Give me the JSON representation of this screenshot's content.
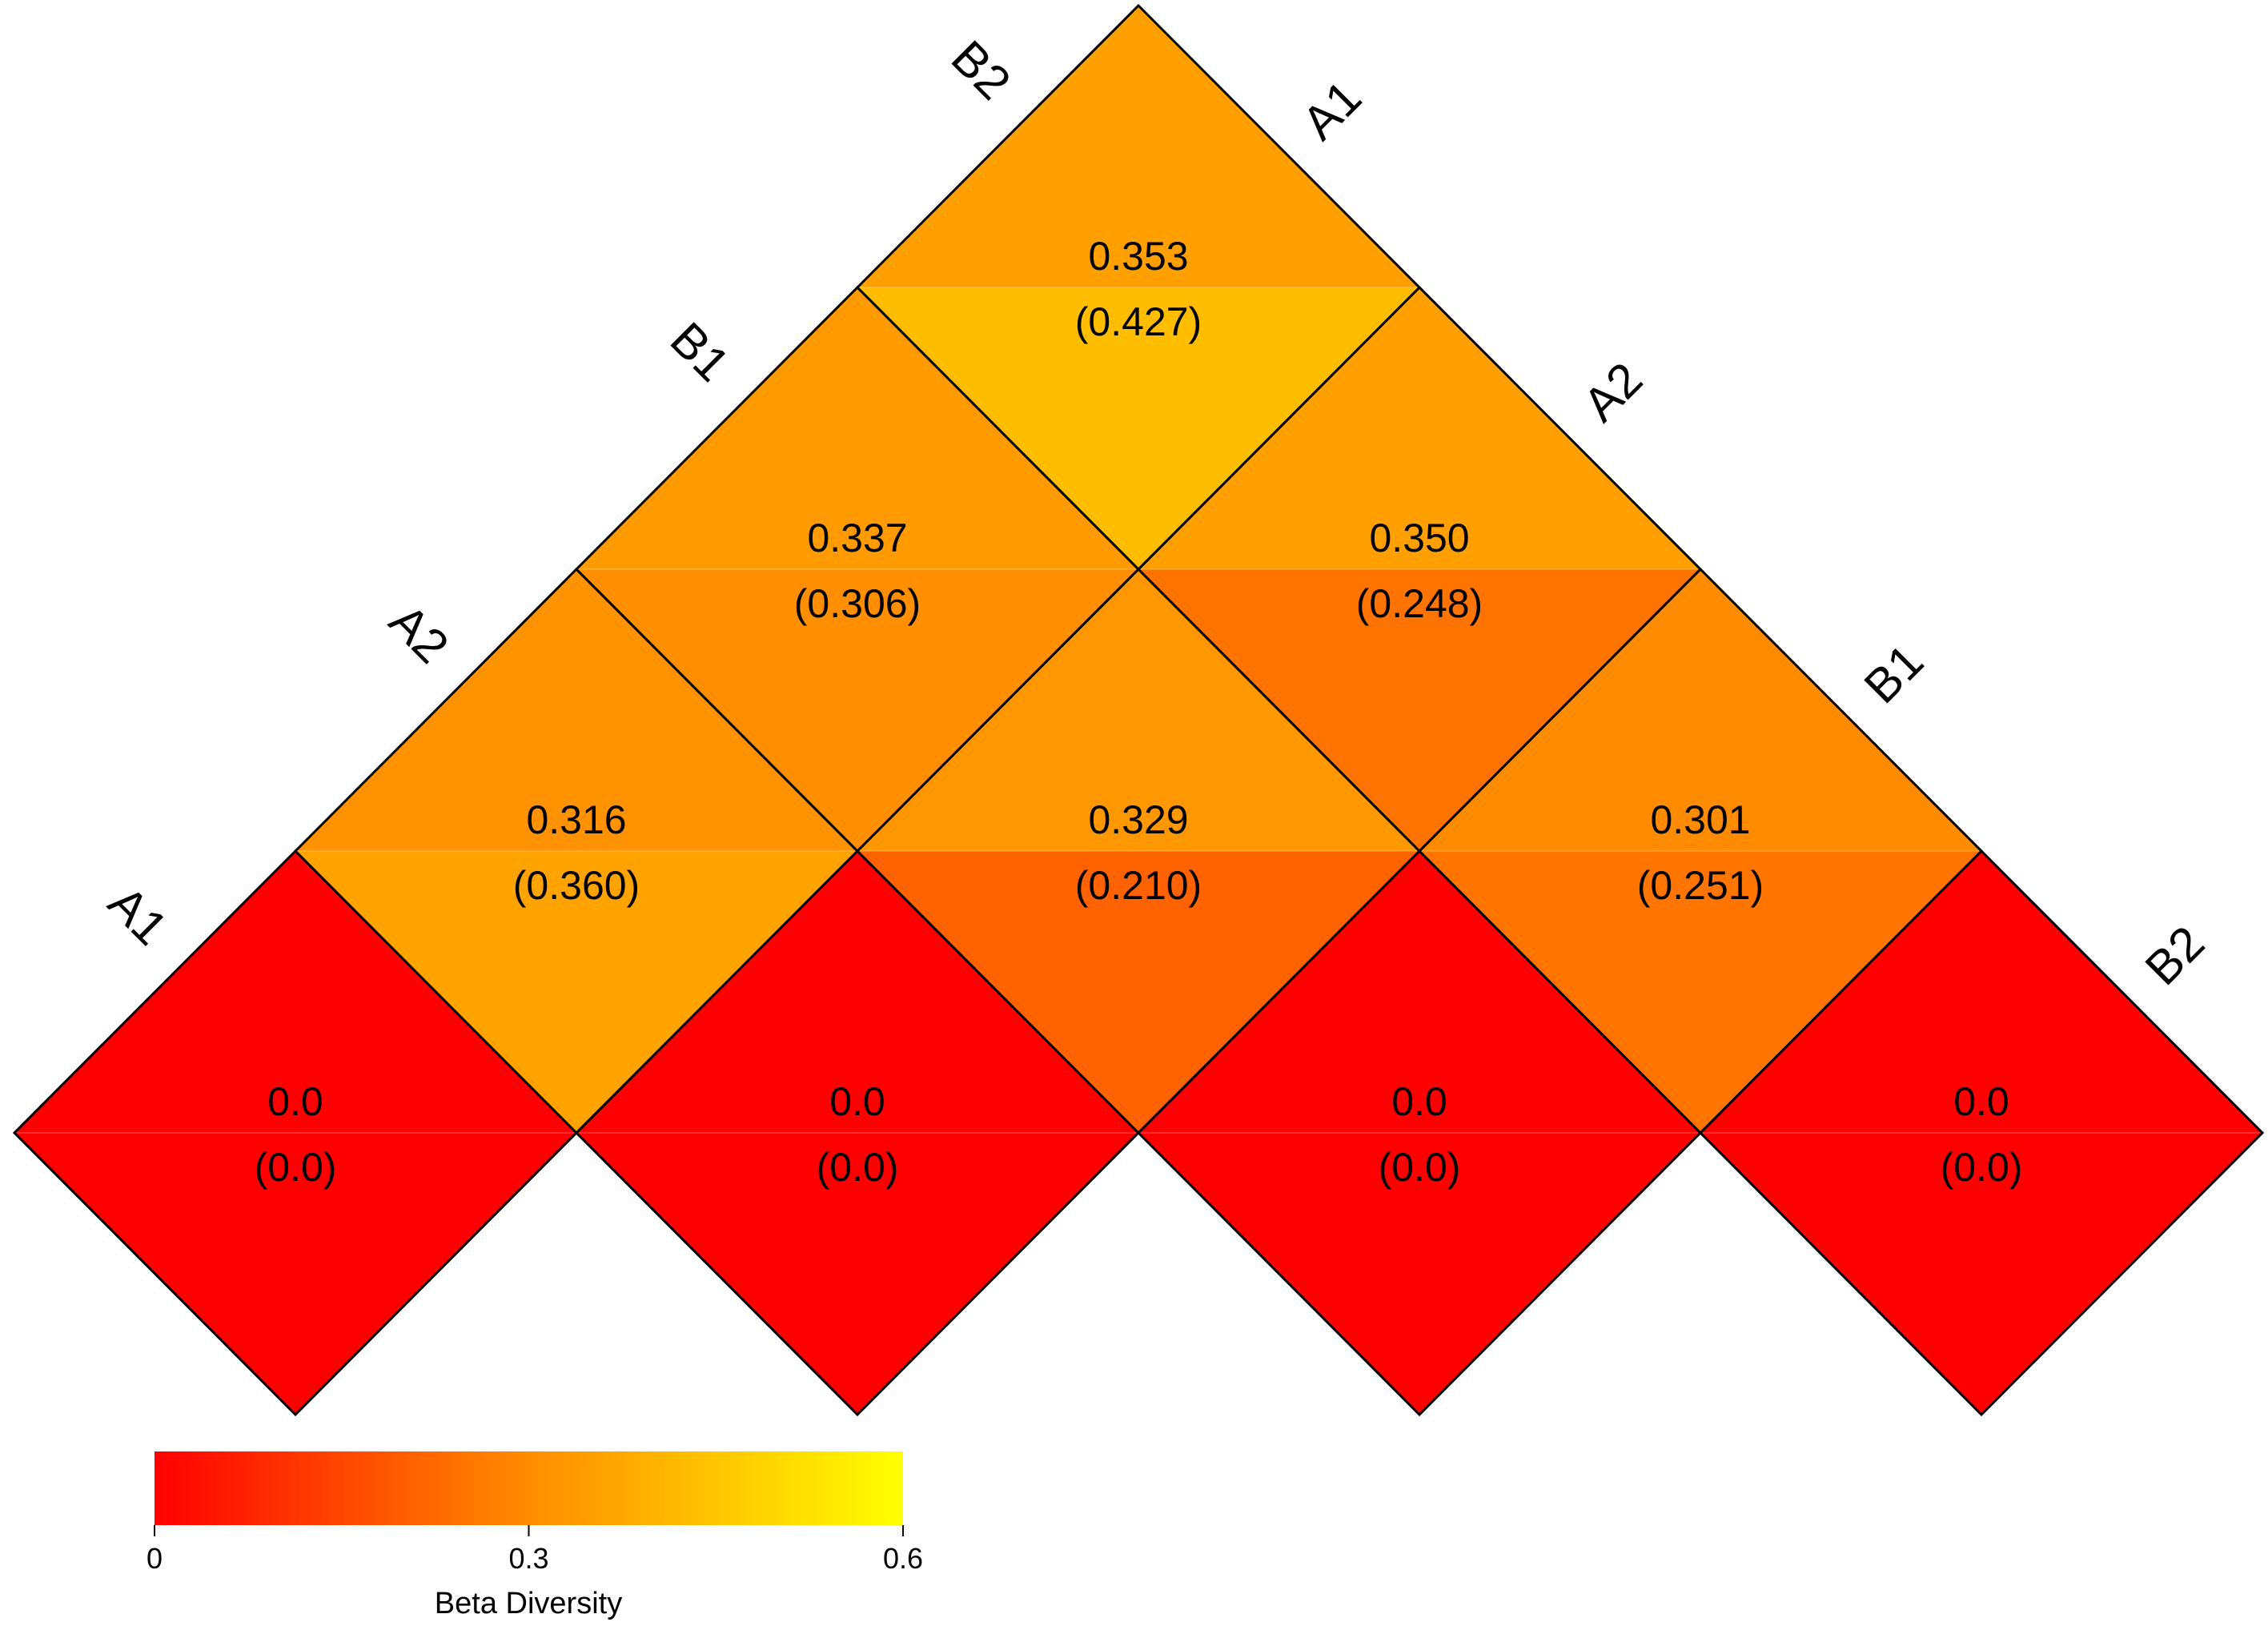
{
  "chart_data": {
    "type": "heatmap",
    "layout": "triangular-diamond",
    "samples": [
      "A1",
      "A2",
      "B1",
      "B2"
    ],
    "left_axis_labels": [
      "A1",
      "A2",
      "B1",
      "B2"
    ],
    "right_axis_labels": [
      "A1",
      "A2",
      "B1",
      "B2"
    ],
    "cells": [
      {
        "i": 0,
        "j": 0,
        "top": 0.0,
        "bottom": 0.0,
        "top_label": "0.0",
        "bottom_label": "(0.0)"
      },
      {
        "i": 1,
        "j": 1,
        "top": 0.0,
        "bottom": 0.0,
        "top_label": "0.0",
        "bottom_label": "(0.0)"
      },
      {
        "i": 2,
        "j": 2,
        "top": 0.0,
        "bottom": 0.0,
        "top_label": "0.0",
        "bottom_label": "(0.0)"
      },
      {
        "i": 3,
        "j": 3,
        "top": 0.0,
        "bottom": 0.0,
        "top_label": "0.0",
        "bottom_label": "(0.0)"
      },
      {
        "i": 0,
        "j": 1,
        "top": 0.316,
        "bottom": 0.36,
        "top_label": "0.316",
        "bottom_label": "(0.360)"
      },
      {
        "i": 1,
        "j": 2,
        "top": 0.329,
        "bottom": 0.21,
        "top_label": "0.329",
        "bottom_label": "(0.210)"
      },
      {
        "i": 2,
        "j": 3,
        "top": 0.301,
        "bottom": 0.251,
        "top_label": "0.301",
        "bottom_label": "(0.251)"
      },
      {
        "i": 0,
        "j": 2,
        "top": 0.337,
        "bottom": 0.306,
        "top_label": "0.337",
        "bottom_label": "(0.306)"
      },
      {
        "i": 1,
        "j": 3,
        "top": 0.35,
        "bottom": 0.248,
        "top_label": "0.350",
        "bottom_label": "(0.248)"
      },
      {
        "i": 0,
        "j": 3,
        "top": 0.353,
        "bottom": 0.427,
        "top_label": "0.353",
        "bottom_label": "(0.427)"
      }
    ],
    "colorbar": {
      "title": "Beta Diversity",
      "range": [
        0,
        0.6
      ],
      "ticks": [
        0,
        0.3,
        0.6
      ],
      "tick_labels": [
        "0",
        "0.3",
        "0.6"
      ],
      "colors": [
        "#ff0000",
        "#ff8c00",
        "#ffff00"
      ]
    }
  }
}
